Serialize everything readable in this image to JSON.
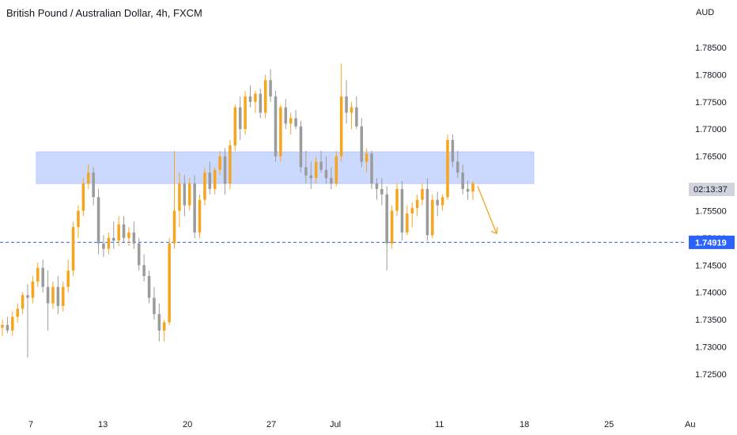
{
  "chart": {
    "title": "British Pound / Australian Dollar, 4h, FXCM",
    "currency": "AUD",
    "countdown": "02:13:37",
    "price_label": "1.74919"
  },
  "colors": {
    "up": "#f7a51f",
    "down": "#9b9b9b",
    "zone_fill": "#c9d7ff",
    "zone_stroke": "#b6c7ff",
    "dashed_line": "#2962ff",
    "arrow": "#f7a51f",
    "price_badge": "#2962ff",
    "countdown_badge": "#d1d4dc"
  },
  "chart_data": {
    "type": "candlestick",
    "y_axis_ticks": [
      "1.78500",
      "1.78000",
      "1.77500",
      "1.77000",
      "1.76500",
      "1.75500",
      "1.75000",
      "1.74500",
      "1.74000",
      "1.73500",
      "1.73000",
      "1.72500"
    ],
    "ylim": [
      1.7215,
      1.7895
    ],
    "x_axis_ticks": [
      "7",
      "13",
      "20",
      "27",
      "Jul",
      "11",
      "18",
      "25",
      "Au"
    ],
    "resistance_zone": [
      1.76,
      1.7658
    ],
    "horizontal_line": 1.74919,
    "arrow": {
      "from": [
        0.0,
        1.7595
      ],
      "to": [
        0.5,
        1.7508
      ]
    },
    "candles": [
      [
        1.7335,
        1.735,
        1.732,
        1.734
      ],
      [
        1.734,
        1.7355,
        1.7325,
        1.733
      ],
      [
        1.733,
        1.7365,
        1.732,
        1.7355
      ],
      [
        1.7355,
        1.738,
        1.7345,
        1.737
      ],
      [
        1.737,
        1.74,
        1.736,
        1.7395
      ],
      [
        1.7395,
        1.7415,
        1.728,
        1.739
      ],
      [
        1.739,
        1.743,
        1.738,
        1.742
      ],
      [
        1.742,
        1.7455,
        1.741,
        1.7445
      ],
      [
        1.7445,
        1.746,
        1.74,
        1.741
      ],
      [
        1.741,
        1.744,
        1.733,
        1.738
      ],
      [
        1.738,
        1.742,
        1.737,
        1.741
      ],
      [
        1.741,
        1.743,
        1.736,
        1.7375
      ],
      [
        1.7375,
        1.742,
        1.7365,
        1.741
      ],
      [
        1.741,
        1.746,
        1.74,
        1.744
      ],
      [
        1.744,
        1.753,
        1.743,
        1.752
      ],
      [
        1.752,
        1.756,
        1.75,
        1.755
      ],
      [
        1.755,
        1.761,
        1.754,
        1.76
      ],
      [
        1.76,
        1.7635,
        1.759,
        1.762
      ],
      [
        1.762,
        1.763,
        1.756,
        1.7575
      ],
      [
        1.7575,
        1.759,
        1.747,
        1.749
      ],
      [
        1.749,
        1.7505,
        1.7465,
        1.748
      ],
      [
        1.748,
        1.751,
        1.747,
        1.75
      ],
      [
        1.75,
        1.753,
        1.748,
        1.7495
      ],
      [
        1.7495,
        1.754,
        1.7485,
        1.7525
      ],
      [
        1.7525,
        1.754,
        1.749,
        1.75
      ],
      [
        1.75,
        1.752,
        1.7485,
        1.751
      ],
      [
        1.751,
        1.753,
        1.748,
        1.749
      ],
      [
        1.749,
        1.75,
        1.744,
        1.745
      ],
      [
        1.745,
        1.747,
        1.742,
        1.743
      ],
      [
        1.743,
        1.744,
        1.738,
        1.739
      ],
      [
        1.739,
        1.741,
        1.735,
        1.736
      ],
      [
        1.736,
        1.738,
        1.731,
        1.733
      ],
      [
        1.733,
        1.735,
        1.731,
        1.7345
      ],
      [
        1.7345,
        1.75,
        1.734,
        1.749
      ],
      [
        1.749,
        1.766,
        1.748,
        1.755
      ],
      [
        1.755,
        1.762,
        1.752,
        1.76
      ],
      [
        1.76,
        1.7615,
        1.754,
        1.756
      ],
      [
        1.756,
        1.761,
        1.755,
        1.76
      ],
      [
        1.76,
        1.7615,
        1.75,
        1.751
      ],
      [
        1.751,
        1.758,
        1.75,
        1.757
      ],
      [
        1.757,
        1.763,
        1.756,
        1.762
      ],
      [
        1.762,
        1.764,
        1.758,
        1.759
      ],
      [
        1.759,
        1.763,
        1.758,
        1.7625
      ],
      [
        1.7625,
        1.766,
        1.7615,
        1.765
      ],
      [
        1.765,
        1.7665,
        1.758,
        1.76
      ],
      [
        1.76,
        1.768,
        1.759,
        1.767
      ],
      [
        1.767,
        1.7745,
        1.766,
        1.774
      ],
      [
        1.774,
        1.776,
        1.768,
        1.77
      ],
      [
        1.77,
        1.777,
        1.769,
        1.776
      ],
      [
        1.776,
        1.778,
        1.774,
        1.775
      ],
      [
        1.775,
        1.777,
        1.773,
        1.7765
      ],
      [
        1.7765,
        1.7775,
        1.772,
        1.773
      ],
      [
        1.773,
        1.78,
        1.772,
        1.779
      ],
      [
        1.779,
        1.781,
        1.775,
        1.776
      ],
      [
        1.776,
        1.777,
        1.764,
        1.765
      ],
      [
        1.765,
        1.7745,
        1.764,
        1.774
      ],
      [
        1.774,
        1.7755,
        1.77,
        1.771
      ],
      [
        1.771,
        1.773,
        1.769,
        1.772
      ],
      [
        1.772,
        1.7735,
        1.77,
        1.7705
      ],
      [
        1.7705,
        1.7715,
        1.762,
        1.763
      ],
      [
        1.763,
        1.766,
        1.76,
        1.7615
      ],
      [
        1.7615,
        1.764,
        1.759,
        1.761
      ],
      [
        1.761,
        1.765,
        1.76,
        1.764
      ],
      [
        1.764,
        1.766,
        1.762,
        1.7625
      ],
      [
        1.7625,
        1.765,
        1.76,
        1.761
      ],
      [
        1.761,
        1.763,
        1.759,
        1.76
      ],
      [
        1.76,
        1.766,
        1.7595,
        1.765
      ],
      [
        1.765,
        1.782,
        1.764,
        1.776
      ],
      [
        1.776,
        1.779,
        1.771,
        1.773
      ],
      [
        1.773,
        1.775,
        1.77,
        1.774
      ],
      [
        1.774,
        1.776,
        1.77,
        1.7705
      ],
      [
        1.7705,
        1.772,
        1.763,
        1.764
      ],
      [
        1.764,
        1.7665,
        1.762,
        1.7655
      ],
      [
        1.7655,
        1.766,
        1.759,
        1.76
      ],
      [
        1.76,
        1.761,
        1.757,
        1.759
      ],
      [
        1.759,
        1.761,
        1.756,
        1.758
      ],
      [
        1.758,
        1.7595,
        1.744,
        1.749
      ],
      [
        1.749,
        1.756,
        1.748,
        1.755
      ],
      [
        1.755,
        1.76,
        1.754,
        1.759
      ],
      [
        1.759,
        1.7605,
        1.7495,
        1.751
      ],
      [
        1.751,
        1.756,
        1.7505,
        1.7545
      ],
      [
        1.7545,
        1.7565,
        1.752,
        1.7555
      ],
      [
        1.7555,
        1.758,
        1.754,
        1.757
      ],
      [
        1.757,
        1.76,
        1.756,
        1.759
      ],
      [
        1.759,
        1.761,
        1.7495,
        1.7505
      ],
      [
        1.7505,
        1.758,
        1.75,
        1.757
      ],
      [
        1.757,
        1.7585,
        1.754,
        1.756
      ],
      [
        1.756,
        1.758,
        1.755,
        1.7575
      ],
      [
        1.7575,
        1.769,
        1.757,
        1.768
      ],
      [
        1.768,
        1.769,
        1.763,
        1.764
      ],
      [
        1.764,
        1.766,
        1.761,
        1.762
      ],
      [
        1.762,
        1.7635,
        1.758,
        1.759
      ],
      [
        1.759,
        1.7605,
        1.757,
        1.7585
      ],
      [
        1.7585,
        1.7605,
        1.757,
        1.76
      ]
    ]
  }
}
